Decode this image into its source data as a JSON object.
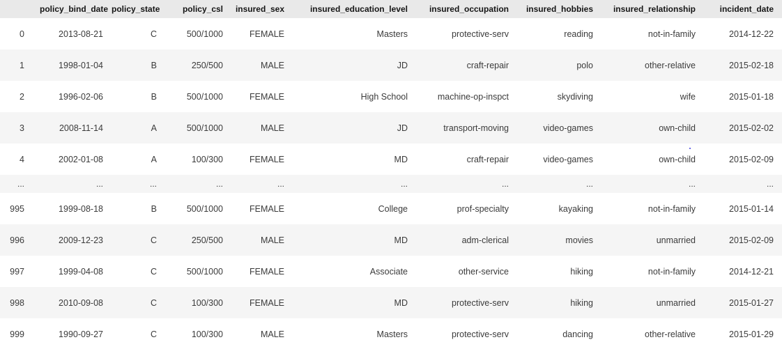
{
  "table": {
    "columns": [
      "",
      "policy_bind_date",
      "policy_state",
      "policy_csl",
      "insured_sex",
      "insured_education_level",
      "insured_occupation",
      "insured_hobbies",
      "insured_relationship",
      "incident_date"
    ],
    "rows": [
      {
        "index": "0",
        "cells": [
          "2013-08-21",
          "C",
          "500/1000",
          "FEMALE",
          "Masters",
          "protective-serv",
          "reading",
          "not-in-family",
          "2014-12-22"
        ]
      },
      {
        "index": "1",
        "cells": [
          "1998-01-04",
          "B",
          "250/500",
          "MALE",
          "JD",
          "craft-repair",
          "polo",
          "other-relative",
          "2015-02-18"
        ]
      },
      {
        "index": "2",
        "cells": [
          "1996-02-06",
          "B",
          "500/1000",
          "FEMALE",
          "High School",
          "machine-op-inspct",
          "skydiving",
          "wife",
          "2015-01-18"
        ]
      },
      {
        "index": "3",
        "cells": [
          "2008-11-14",
          "A",
          "500/1000",
          "MALE",
          "JD",
          "transport-moving",
          "video-games",
          "own-child",
          "2015-02-02"
        ]
      },
      {
        "index": "4",
        "cells": [
          "2002-01-08",
          "A",
          "100/300",
          "FEMALE",
          "MD",
          "craft-repair",
          "video-games",
          "own-child",
          "2015-02-09"
        ]
      },
      {
        "index": "...",
        "cells": [
          "...",
          "...",
          "...",
          "...",
          "...",
          "...",
          "...",
          "...",
          "..."
        ]
      },
      {
        "index": "995",
        "cells": [
          "1999-08-18",
          "B",
          "500/1000",
          "FEMALE",
          "College",
          "prof-specialty",
          "kayaking",
          "not-in-family",
          "2015-01-14"
        ]
      },
      {
        "index": "996",
        "cells": [
          "2009-12-23",
          "C",
          "250/500",
          "MALE",
          "MD",
          "adm-clerical",
          "movies",
          "unmarried",
          "2015-02-09"
        ]
      },
      {
        "index": "997",
        "cells": [
          "1999-04-08",
          "C",
          "500/1000",
          "FEMALE",
          "Associate",
          "other-service",
          "hiking",
          "not-in-family",
          "2014-12-21"
        ]
      },
      {
        "index": "998",
        "cells": [
          "2010-09-08",
          "C",
          "100/300",
          "FEMALE",
          "MD",
          "protective-serv",
          "hiking",
          "unmarried",
          "2015-01-27"
        ]
      },
      {
        "index": "999",
        "cells": [
          "1990-09-27",
          "C",
          "100/300",
          "MALE",
          "Masters",
          "protective-serv",
          "dancing",
          "other-relative",
          "2015-01-29"
        ]
      }
    ]
  },
  "colors": {
    "header_bg": "#e9e9e9",
    "header_text": "#161616",
    "stripe_bg": "#f5f5f5",
    "cell_text": "#3b3b3b",
    "stray_dot": "#3a3ae0"
  },
  "artifact": {
    "stray_dot_glyph": "."
  }
}
